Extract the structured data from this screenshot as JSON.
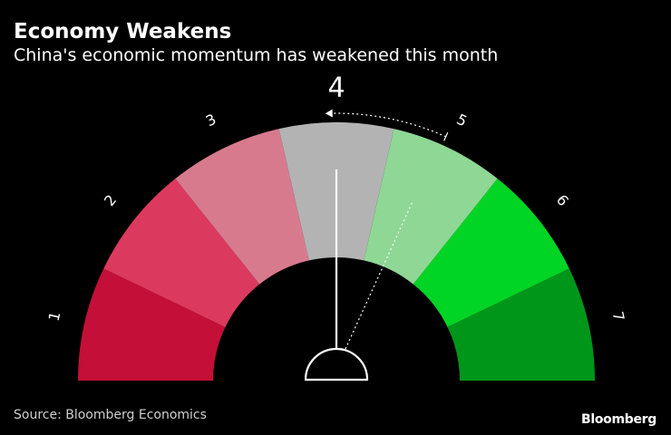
{
  "header": {
    "title": "Economy Weakens",
    "subtitle": "China's economic momentum has weakened this month"
  },
  "footer": {
    "source": "Source: Bloomberg Economics",
    "brand": "Bloomberg"
  },
  "chart_data": {
    "type": "gauge",
    "title": "Economy Weakens",
    "subtitle": "China's economic momentum has weakened this month",
    "scale_labels": [
      "1",
      "2",
      "3",
      "4",
      "5",
      "6",
      "7"
    ],
    "segments": [
      {
        "label": "1",
        "color": "#c40f38"
      },
      {
        "label": "2",
        "color": "#db3a5e"
      },
      {
        "label": "3",
        "color": "#d87a8e"
      },
      {
        "label": "4",
        "color": "#b3b3b3"
      },
      {
        "label": "5",
        "color": "#8ed795"
      },
      {
        "label": "6",
        "color": "#00d424"
      },
      {
        "label": "7",
        "color": "#00961a"
      }
    ],
    "current_value": 4,
    "previous_value": 4.9,
    "current_value_label": "4",
    "needle_color": "#ffffff"
  }
}
